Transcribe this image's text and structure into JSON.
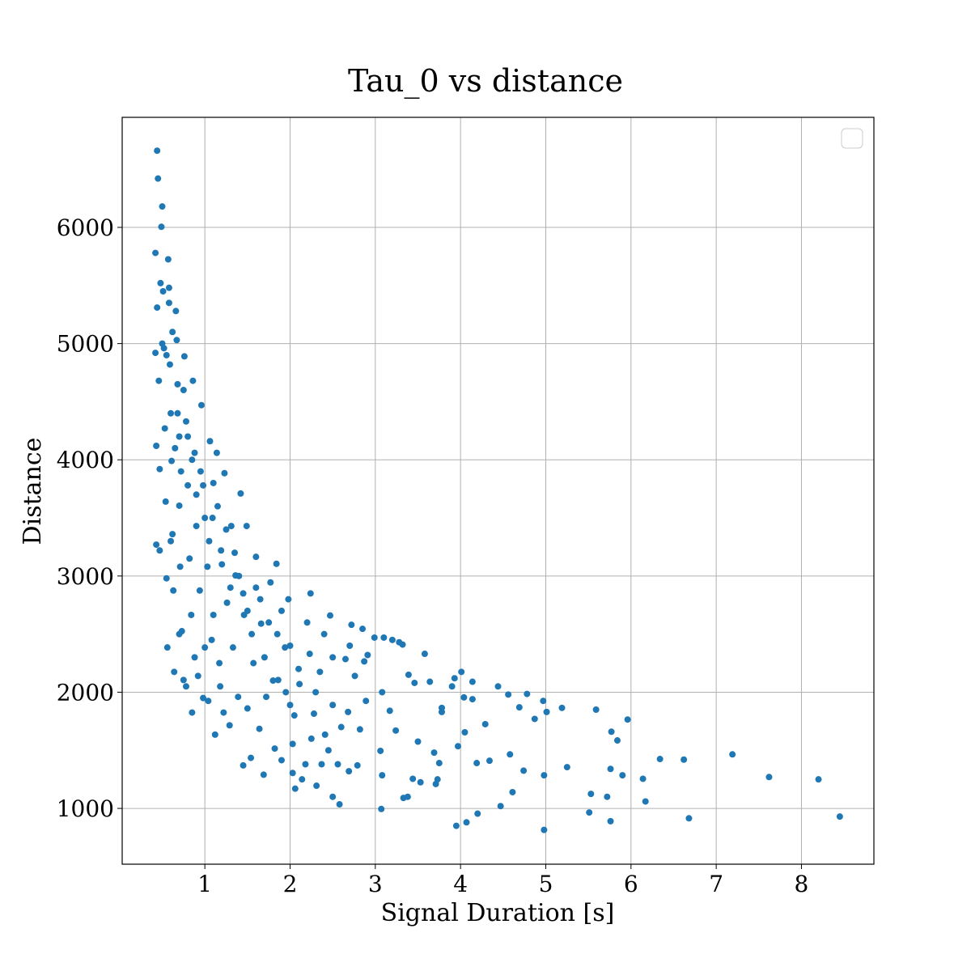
{
  "chart_data": {
    "type": "scatter",
    "title": "Tau_0 vs distance",
    "x_label": "Signal Duration [s]",
    "y_label": "Distance",
    "color": "#1f77b4",
    "grid": true,
    "xlim": [
      0.03,
      8.85
    ],
    "ylim": [
      520,
      6947
    ],
    "xticks": [
      1,
      2,
      3,
      4,
      5,
      6,
      7,
      8
    ],
    "yticks": [
      1000,
      2000,
      3000,
      4000,
      5000,
      6000
    ],
    "x": [
      8.45,
      8.2,
      7.62,
      7.19,
      6.68,
      6.62,
      6.34,
      6.17,
      6.14,
      5.96,
      5.9,
      5.84,
      5.77,
      5.76,
      5.76,
      5.72,
      5.59,
      5.53,
      5.51,
      5.19,
      5.25,
      5.01,
      4.97,
      4.98,
      4.98,
      4.87,
      4.78,
      4.74,
      4.69,
      4.61,
      4.58,
      4.56,
      4.47,
      4.44,
      4.34,
      4.29,
      4.2,
      4.19,
      4.14,
      4.14,
      4.07,
      4.05,
      4.01,
      4.04,
      3.97,
      3.95,
      3.93,
      3.9,
      3.78,
      3.78,
      3.75,
      3.73,
      3.71,
      3.69,
      3.64,
      3.58,
      3.53,
      3.5,
      3.46,
      3.44,
      3.39,
      3.38,
      3.32,
      3.33,
      3.28,
      3.24,
      3.2,
      3.17,
      3.07,
      3.06,
      3.08,
      3.08,
      3.1,
      2.99,
      2.91,
      2.89,
      2.87,
      2.85,
      2.82,
      2.79,
      2.76,
      2.72,
      2.69,
      2.68,
      2.65,
      2.58,
      2.56,
      2.5,
      2.5,
      2.47,
      2.41,
      2.37,
      2.35,
      2.31,
      2.28,
      2.24,
      2.23,
      2.18,
      2.14,
      2.11,
      2.06,
      2.03,
      2.03,
      2.0,
      1.98,
      1.94,
      1.9,
      1.86,
      1.84,
      1.82,
      1.77,
      1.72,
      1.69,
      1.66,
      1.64,
      1.6,
      1.57,
      1.54,
      1.5,
      1.49,
      1.46,
      1.45,
      1.42,
      1.39,
      1.36,
      1.33,
      1.31,
      1.29,
      1.26,
      1.23,
      1.22,
      1.19,
      1.17,
      1.14,
      1.12,
      1.1,
      1.09,
      1.06,
      1.04,
      1.03,
      1.0,
      0.98,
      0.96,
      0.94,
      0.92,
      0.9,
      0.88,
      0.86,
      0.85,
      0.84,
      0.82,
      0.8,
      0.78,
      0.76,
      0.75,
      0.73,
      0.71,
      0.7,
      0.7,
      0.68,
      0.67,
      0.66,
      0.64,
      0.63,
      0.62,
      0.61,
      0.6,
      0.59,
      0.58,
      0.57,
      0.56,
      0.55,
      0.54,
      0.53,
      0.52,
      0.51,
      0.5,
      0.49,
      0.48,
      0.47,
      0.47,
      0.46,
      0.45,
      0.44,
      0.44,
      0.43,
      0.43,
      0.42,
      0.42,
      0.65,
      0.72,
      0.8,
      0.9,
      1.0,
      1.05,
      1.15,
      1.2,
      1.3,
      1.4,
      1.5,
      1.55,
      1.6,
      1.7,
      1.75,
      1.8,
      1.9,
      2.0,
      2.1,
      2.2,
      2.3,
      2.4,
      2.5,
      2.6,
      2.7,
      0.55,
      0.62,
      0.68,
      0.75,
      0.85,
      0.95,
      1.1,
      1.25,
      1.35,
      1.45,
      1.65,
      1.85,
      1.95,
      2.05,
      2.25,
      2.45,
      0.5,
      0.58,
      0.6,
      0.7,
      0.78,
      0.88,
      0.98,
      1.08,
      1.18
    ],
    "values": [
      930,
      1250,
      1270,
      1465,
      915,
      1420,
      1425,
      1060,
      1255,
      1765,
      1285,
      1585,
      1660,
      1340,
      890,
      1100,
      1850,
      1125,
      965,
      1865,
      1355,
      1830,
      1925,
      1285,
      815,
      1770,
      1985,
      1325,
      1870,
      1140,
      1465,
      1980,
      1020,
      2050,
      1410,
      1725,
      955,
      1390,
      1940,
      2090,
      880,
      1655,
      2175,
      1955,
      1535,
      850,
      2120,
      2050,
      1865,
      1830,
      1390,
      1250,
      1210,
      1480,
      2090,
      2330,
      1225,
      1575,
      2080,
      1255,
      2150,
      1100,
      2410,
      1090,
      2430,
      1670,
      2450,
      1840,
      995,
      1495,
      1285,
      2000,
      2470,
      2470,
      2320,
      1925,
      2265,
      2545,
      1680,
      1370,
      2140,
      2580,
      1320,
      1830,
      2285,
      1035,
      1380,
      1890,
      1100,
      2660,
      1635,
      1380,
      2175,
      1195,
      1815,
      2850,
      2330,
      1380,
      1250,
      2070,
      1170,
      1555,
      1305,
      1890,
      2800,
      2385,
      1415,
      2105,
      3105,
      1515,
      2945,
      1960,
      1290,
      2590,
      1685,
      3165,
      2250,
      1435,
      1860,
      3430,
      2665,
      1370,
      3710,
      1960,
      3005,
      2385,
      3430,
      1715,
      2770,
      3885,
      1825,
      3220,
      2250,
      4060,
      1635,
      2665,
      3500,
      4160,
      1925,
      3080,
      2385,
      3780,
      4470,
      2875,
      2140,
      3430,
      4060,
      4680,
      1825,
      2665,
      3150,
      3780,
      4330,
      4890,
      2105,
      2525,
      3080,
      3605,
      4200,
      4650,
      5030,
      5280,
      2175,
      2875,
      3360,
      3990,
      4400,
      4820,
      5480,
      5725,
      2385,
      2980,
      3640,
      4270,
      4960,
      5450,
      6180,
      6005,
      5520,
      3220,
      3920,
      4680,
      6420,
      6660,
      5310,
      4120,
      3270,
      5780,
      4920,
      4100,
      3900,
      4200,
      3700,
      3500,
      3300,
      3600,
      3100,
      2900,
      3000,
      2700,
      2500,
      2900,
      2300,
      2600,
      2100,
      2700,
      2400,
      2200,
      2600,
      2000,
      2500,
      2300,
      1700,
      2400,
      4900,
      5100,
      4400,
      4600,
      4000,
      3900,
      3800,
      3400,
      3200,
      2850,
      2800,
      2500,
      2000,
      1800,
      1600,
      1500,
      5000,
      5350,
      3300,
      2500,
      2050,
      2300,
      1950,
      2450,
      2050
    ]
  }
}
